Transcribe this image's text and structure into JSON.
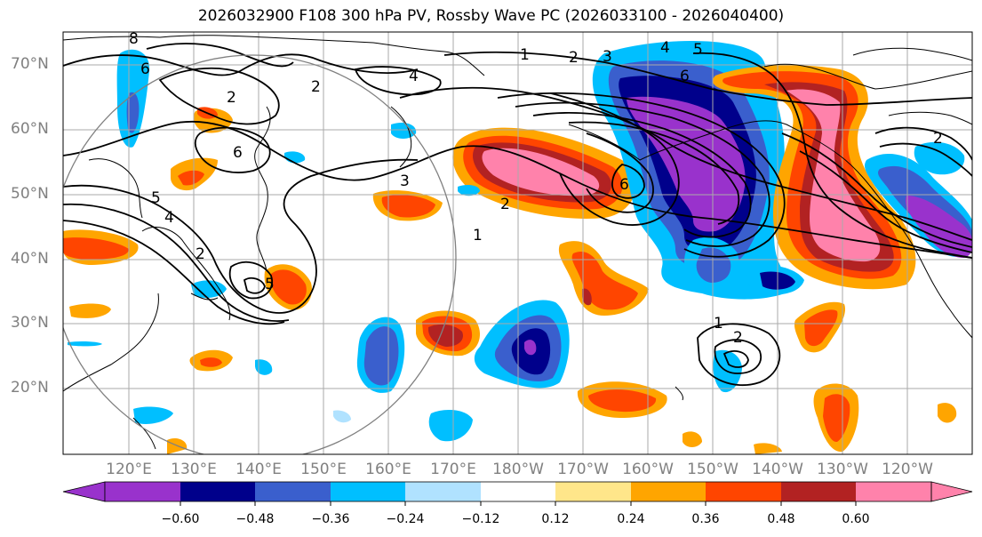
{
  "title": "2026032900 F108 300 hPa PV, Rossby Wave PC (2026033100 - 2026040400)",
  "lat_labels": [
    "70°N",
    "60°N",
    "50°N",
    "40°N",
    "30°N",
    "20°N"
  ],
  "lon_labels": [
    "120°E",
    "130°E",
    "140°E",
    "150°E",
    "160°E",
    "170°E",
    "180°W",
    "170°W",
    "160°W",
    "150°W",
    "140°W",
    "130°W",
    "120°W"
  ],
  "colorbar": {
    "tick_labels": [
      "−0.60",
      "−0.48",
      "−0.36",
      "−0.24",
      "−0.12",
      "0.12",
      "0.24",
      "0.36",
      "0.48",
      "0.60"
    ],
    "colors": [
      "#9932cc",
      "#00008b",
      "#3a5fcd",
      "#00bfff",
      "#b0e2ff",
      "#ffffff",
      "#ffe68a",
      "#ffa500",
      "#ff4500",
      "#b22222",
      "#ff82ab"
    ]
  },
  "contour_labels": [
    "8",
    "6",
    "2",
    "2",
    "4",
    "1",
    "2",
    "3",
    "4",
    "5",
    "6",
    "6",
    "3",
    "2",
    "1",
    "2",
    "6",
    "5",
    "4",
    "5",
    "1",
    "2",
    "2"
  ]
}
